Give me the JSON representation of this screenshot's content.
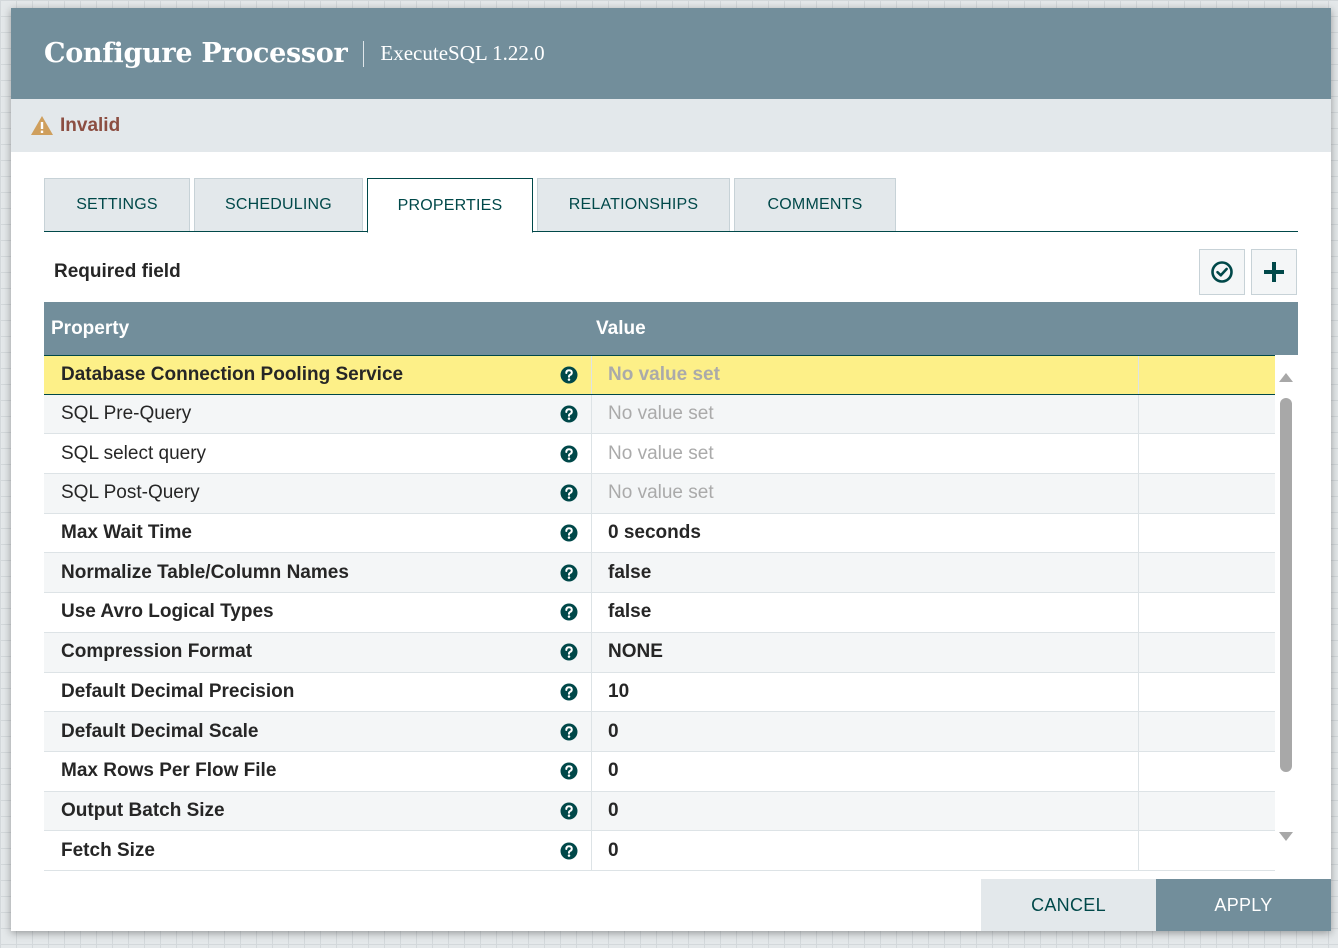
{
  "dialog": {
    "title": "Configure Processor",
    "subtitle": "ExecuteSQL 1.22.0"
  },
  "status": {
    "text": "Invalid",
    "icon": "warning-icon",
    "color": "#8c4e42"
  },
  "tabs": [
    {
      "label": "SETTINGS",
      "active": false
    },
    {
      "label": "SCHEDULING",
      "active": false
    },
    {
      "label": "PROPERTIES",
      "active": true
    },
    {
      "label": "RELATIONSHIPS",
      "active": false
    },
    {
      "label": "COMMENTS",
      "active": false
    }
  ],
  "properties_panel": {
    "required_label": "Required field",
    "verify_icon": "check-circle-icon",
    "add_icon": "plus-icon",
    "columns": {
      "property": "Property",
      "value": "Value"
    },
    "rows": [
      {
        "name": "Database Connection Pooling Service",
        "value": "No value set",
        "required": true,
        "empty": true,
        "selected": true
      },
      {
        "name": "SQL Pre-Query",
        "value": "No value set",
        "required": false,
        "empty": true
      },
      {
        "name": "SQL select query",
        "value": "No value set",
        "required": false,
        "empty": true
      },
      {
        "name": "SQL Post-Query",
        "value": "No value set",
        "required": false,
        "empty": true
      },
      {
        "name": "Max Wait Time",
        "value": "0 seconds",
        "required": true,
        "empty": false
      },
      {
        "name": "Normalize Table/Column Names",
        "value": "false",
        "required": true,
        "empty": false
      },
      {
        "name": "Use Avro Logical Types",
        "value": "false",
        "required": true,
        "empty": false
      },
      {
        "name": "Compression Format",
        "value": "NONE",
        "required": true,
        "empty": false
      },
      {
        "name": "Default Decimal Precision",
        "value": "10",
        "required": true,
        "empty": false
      },
      {
        "name": "Default Decimal Scale",
        "value": "0",
        "required": true,
        "empty": false
      },
      {
        "name": "Max Rows Per Flow File",
        "value": "0",
        "required": true,
        "empty": false
      },
      {
        "name": "Output Batch Size",
        "value": "0",
        "required": true,
        "empty": false
      },
      {
        "name": "Fetch Size",
        "value": "0",
        "required": true,
        "empty": false
      }
    ]
  },
  "buttons": {
    "cancel": "CANCEL",
    "apply": "APPLY"
  },
  "colors": {
    "header": "#728e9b",
    "accent": "#004849",
    "selected_row": "#fdf088"
  }
}
